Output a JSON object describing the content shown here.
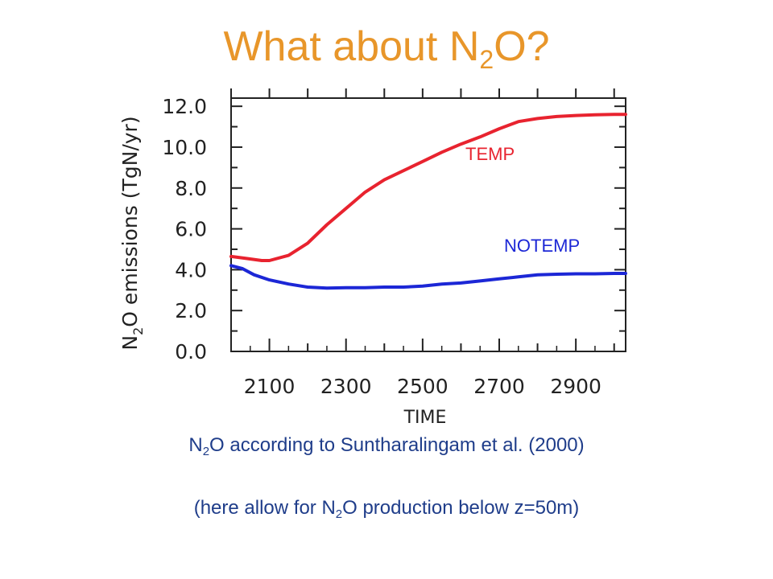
{
  "slide": {
    "title_prefix": "What about N",
    "title_sub": "2",
    "title_suffix": "O?"
  },
  "chart_data": {
    "type": "line",
    "title": "",
    "xlabel": "TIME",
    "ylabel_prefix": "N",
    "ylabel_sub": "2",
    "ylabel_suffix": "O emissions (TgN/yr)",
    "xlim": [
      2000,
      3030
    ],
    "ylim": [
      0,
      12.4
    ],
    "xticks": [
      2100,
      2300,
      2500,
      2700,
      2900
    ],
    "xtick_labels": [
      "2100",
      "2300",
      "2500",
      "2700",
      "2900"
    ],
    "yticks": [
      0,
      2,
      4,
      6,
      8,
      10,
      12
    ],
    "ytick_labels": [
      "0.0",
      "2.0",
      "4.0",
      "6.0",
      "8.0",
      "10.0",
      "12.0"
    ],
    "series": [
      {
        "name": "TEMP",
        "color": "#e8232f",
        "x": [
          2000,
          2040,
          2080,
          2100,
          2150,
          2200,
          2250,
          2300,
          2350,
          2400,
          2450,
          2500,
          2550,
          2600,
          2650,
          2700,
          2750,
          2800,
          2850,
          2900,
          2950,
          3000,
          3030
        ],
        "values": [
          4.65,
          4.55,
          4.45,
          4.45,
          4.7,
          5.3,
          6.2,
          7.0,
          7.8,
          8.4,
          8.85,
          9.3,
          9.75,
          10.15,
          10.5,
          10.9,
          11.25,
          11.4,
          11.5,
          11.55,
          11.58,
          11.6,
          11.6
        ]
      },
      {
        "name": "NOTEMP",
        "color": "#1c27d6",
        "x": [
          2000,
          2030,
          2060,
          2100,
          2150,
          2200,
          2250,
          2300,
          2350,
          2400,
          2450,
          2500,
          2550,
          2600,
          2650,
          2700,
          2750,
          2800,
          2850,
          2900,
          2950,
          3000,
          3030
        ],
        "values": [
          4.2,
          4.05,
          3.75,
          3.5,
          3.3,
          3.15,
          3.1,
          3.12,
          3.12,
          3.15,
          3.15,
          3.2,
          3.3,
          3.35,
          3.45,
          3.55,
          3.65,
          3.75,
          3.78,
          3.8,
          3.8,
          3.82,
          3.82
        ]
      }
    ],
    "series_labels": [
      {
        "text": "TEMP",
        "color": "#e8232f"
      },
      {
        "text": "NOTEMP",
        "color": "#1c27d6"
      }
    ],
    "grid": false
  },
  "captions": {
    "line1_prefix": "N",
    "line1_sub": "2",
    "line1_suffix": "O according to Suntharalingam et al. (2000)",
    "line2_prefix": "(here allow for N",
    "line2_sub": "2",
    "line2_suffix": "O production below z=50m)"
  }
}
